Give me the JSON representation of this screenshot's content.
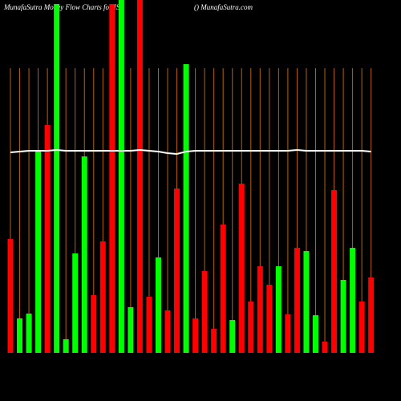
{
  "chart_data": {
    "type": "bar",
    "title": "MunafaSutra Money Flow Charts for ISI",
    "subtitle": "() MunafaSutra.com",
    "categories": [
      null,
      null,
      null,
      null,
      null,
      null,
      null,
      null,
      null,
      null,
      null,
      null,
      null,
      null,
      null,
      null,
      null,
      null,
      null,
      null,
      null,
      null,
      null,
      null,
      null,
      null,
      null,
      null,
      null,
      null,
      null,
      null,
      null,
      null,
      null,
      null,
      null,
      null,
      null,
      null
    ],
    "values": [
      142,
      43,
      49,
      252,
      284,
      435,
      17,
      124,
      245,
      72,
      139,
      435,
      440,
      57,
      440,
      70,
      119,
      53,
      205,
      360,
      43,
      102,
      30,
      160,
      41,
      211,
      64,
      108,
      85,
      108,
      48,
      131,
      127,
      47,
      14,
      203,
      91,
      131,
      64,
      94
    ],
    "bar_colors": [
      "red",
      "lime",
      "lime",
      "lime",
      "red",
      "lime",
      "lime",
      "lime",
      "lime",
      "red",
      "red",
      "red",
      "lime",
      "lime",
      "red",
      "red",
      "lime",
      "red",
      "red",
      "lime",
      "red",
      "red",
      "red",
      "red",
      "lime",
      "red",
      "red",
      "red",
      "red",
      "lime",
      "red",
      "red",
      "lime",
      "lime",
      "red",
      "red",
      "lime",
      "lime",
      "red",
      "red"
    ],
    "line": {
      "color": "#ffffff",
      "values": [
        250,
        251,
        252,
        252,
        252,
        253,
        252,
        252,
        252,
        252,
        252,
        252,
        252,
        252,
        253,
        252,
        251,
        249,
        248,
        251,
        252,
        252,
        252,
        252,
        252,
        252,
        252,
        252,
        252,
        252,
        252,
        253,
        252,
        252,
        252,
        252,
        252,
        252,
        252,
        251
      ]
    },
    "ylim": [
      0,
      440
    ],
    "grid_color": "#b8600b"
  }
}
